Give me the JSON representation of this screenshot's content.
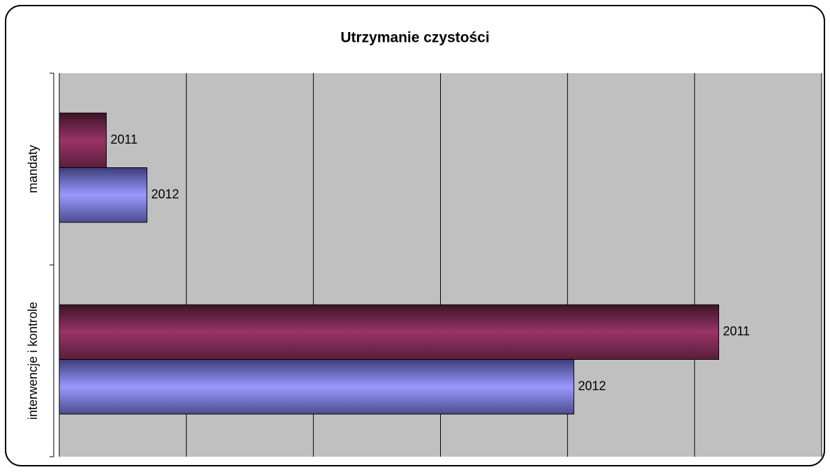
{
  "chart_data": {
    "type": "hbar",
    "title": "Utrzymanie czystości",
    "categories": [
      "mandaty",
      "interwencje i kontrole"
    ],
    "series": [
      {
        "name": "2011",
        "color": "#993366",
        "values": [
          0.37,
          5.19
        ]
      },
      {
        "name": "2012",
        "color": "#9999ff",
        "values": [
          0.69,
          4.05
        ]
      }
    ],
    "xlim": [
      0,
      6
    ],
    "xticks": [
      0,
      1,
      2,
      3,
      4,
      5,
      6
    ],
    "grid": true
  }
}
